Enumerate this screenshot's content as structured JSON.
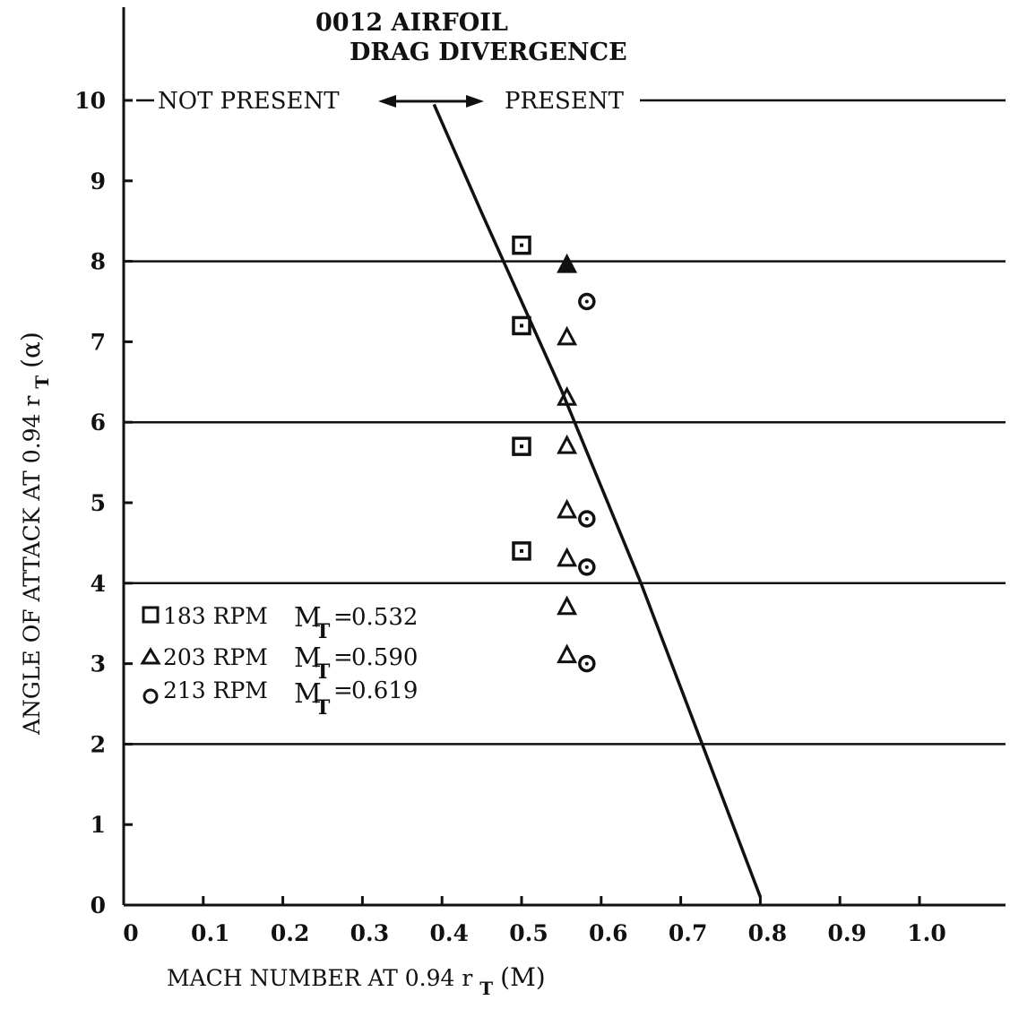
{
  "chart_data": {
    "type": "scatter",
    "title": "0012 AIRFOIL",
    "subtitle": "DRAG DIVERGENCE",
    "xlabel": "MACH NUMBER AT 0.94 r",
    "xlabel_sub": "T",
    "xlabel_suffix": "(M)",
    "ylabel": "ANGLE OF ATTACK AT 0.94 r",
    "ylabel_sub": "T",
    "ylabel_suffix": "(α)",
    "xlim": [
      0,
      1.1
    ],
    "ylim": [
      0,
      10.5
    ],
    "x_ticks": [
      {
        "value": 0,
        "label": "0"
      },
      {
        "value": 0.1,
        "label": "0.1"
      },
      {
        "value": 0.2,
        "label": "0.2"
      },
      {
        "value": 0.3,
        "label": "0.3"
      },
      {
        "value": 0.4,
        "label": "0.4"
      },
      {
        "value": 0.5,
        "label": "0.5"
      },
      {
        "value": 0.6,
        "label": "0.6"
      },
      {
        "value": 0.7,
        "label": "0.7"
      },
      {
        "value": 0.8,
        "label": "0.8"
      },
      {
        "value": 0.9,
        "label": "0.9"
      },
      {
        "value": 1.0,
        "label": "1.0"
      }
    ],
    "y_ticks": [
      {
        "value": 0,
        "label": "0"
      },
      {
        "value": 1,
        "label": "1"
      },
      {
        "value": 2,
        "label": "2"
      },
      {
        "value": 3,
        "label": "3"
      },
      {
        "value": 4,
        "label": "4"
      },
      {
        "value": 5,
        "label": "5"
      },
      {
        "value": 6,
        "label": "6"
      },
      {
        "value": 7,
        "label": "7"
      },
      {
        "value": 8,
        "label": "8"
      },
      {
        "value": 9,
        "label": "9"
      },
      {
        "value": 10,
        "label": "10"
      }
    ],
    "gridlines_y": [
      2,
      4,
      6,
      8,
      10
    ],
    "region_left": "NOT PRESENT",
    "region_right": "PRESENT",
    "boundary_line": [
      {
        "x": 0.39,
        "y": 9.95
      },
      {
        "x": 0.45,
        "y": 8.6
      },
      {
        "x": 0.55,
        "y": 6.4
      },
      {
        "x": 0.65,
        "y": 4.0
      },
      {
        "x": 0.8,
        "y": 0.1
      }
    ],
    "legend_position": "left-middle",
    "series": [
      {
        "name": "183 RPM",
        "mt_value": "0.532",
        "marker": "square",
        "points": [
          {
            "x": 0.5,
            "y": 8.2
          },
          {
            "x": 0.5,
            "y": 7.2
          },
          {
            "x": 0.5,
            "y": 5.7
          },
          {
            "x": 0.5,
            "y": 4.4
          }
        ]
      },
      {
        "name": "203 RPM",
        "mt_value": "0.590",
        "marker": "triangle",
        "points": [
          {
            "x": 0.557,
            "y": 7.95
          },
          {
            "x": 0.557,
            "y": 7.05
          },
          {
            "x": 0.557,
            "y": 6.3
          },
          {
            "x": 0.557,
            "y": 5.7
          },
          {
            "x": 0.557,
            "y": 4.9
          },
          {
            "x": 0.557,
            "y": 4.3
          },
          {
            "x": 0.557,
            "y": 3.7
          },
          {
            "x": 0.557,
            "y": 3.1
          }
        ]
      },
      {
        "name": "213 RPM",
        "mt_value": "0.619",
        "marker": "circle",
        "points": [
          {
            "x": 0.582,
            "y": 7.5
          },
          {
            "x": 0.582,
            "y": 4.8
          },
          {
            "x": 0.582,
            "y": 4.2
          },
          {
            "x": 0.582,
            "y": 3.0
          }
        ]
      }
    ],
    "legend_mt_label": "M",
    "legend_mt_sub": "T",
    "legend_equals": "="
  }
}
